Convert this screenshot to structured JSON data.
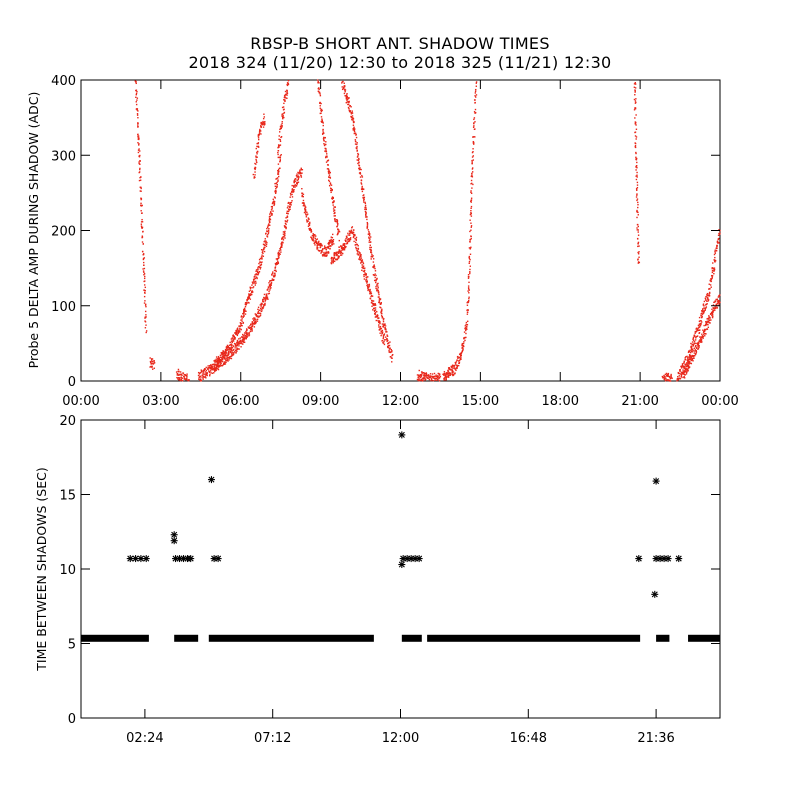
{
  "title_line1": "RBSP-B SHORT ANT. SHADOW TIMES",
  "title_line2": "2018 324 (11/20) 12:30 to 2018 325 (11/21) 12:30",
  "colors": {
    "top_points": "#e8271a",
    "bottom_points": "#000000",
    "axes": "#000000"
  },
  "chart_data": [
    {
      "type": "scatter",
      "ylabel": "Probe 5 DELTA AMP DURING SHADOW (ADC)",
      "xlabel": "",
      "x_unit": "hours",
      "xlim": [
        0,
        24
      ],
      "ylim": [
        0,
        400
      ],
      "xtick_labels": [
        "00:00",
        "03:00",
        "06:00",
        "09:00",
        "12:00",
        "15:00",
        "18:00",
        "21:00",
        "00:00"
      ],
      "xtick_values": [
        0,
        3,
        6,
        9,
        12,
        15,
        18,
        21,
        24
      ],
      "ytick_labels": [
        "0",
        "100",
        "200",
        "300",
        "400"
      ],
      "ytick_values": [
        0,
        100,
        200,
        300,
        400
      ],
      "point_color": "#e8271a",
      "segments": [
        {
          "x": [
            2.05,
            2.15,
            2.25,
            2.35,
            2.45
          ],
          "y": [
            400,
            330,
            250,
            160,
            65
          ]
        },
        {
          "x": [
            2.6,
            2.75
          ],
          "y": [
            24,
            22
          ]
        },
        {
          "x": [
            3.6,
            3.75,
            3.9,
            4.05
          ],
          "y": [
            10,
            6,
            3,
            2
          ]
        },
        {
          "x": [
            4.4,
            5.0,
            5.6,
            6.2,
            6.6,
            7.0,
            7.3,
            7.6,
            7.8,
            8.0,
            8.3
          ],
          "y": [
            5,
            18,
            35,
            60,
            85,
            115,
            150,
            190,
            230,
            260,
            280
          ]
        },
        {
          "x": [
            5.0,
            5.6,
            6.0,
            6.3,
            6.6,
            6.9,
            7.2,
            7.5
          ],
          "y": [
            20,
            45,
            75,
            110,
            140,
            180,
            230,
            300
          ]
        },
        {
          "x": [
            6.5,
            6.7,
            6.9
          ],
          "y": [
            270,
            330,
            350
          ]
        },
        {
          "x": [
            7.4,
            7.6,
            7.8
          ],
          "y": [
            300,
            360,
            400
          ]
        },
        {
          "x": [
            8.3,
            8.6,
            8.9,
            9.2,
            9.5
          ],
          "y": [
            250,
            200,
            180,
            170,
            190
          ]
        },
        {
          "x": [
            8.9,
            9.1,
            9.3,
            9.5,
            9.7
          ],
          "y": [
            400,
            330,
            280,
            230,
            190
          ]
        },
        {
          "x": [
            9.8,
            10.2,
            10.6,
            11.0,
            11.4,
            11.7
          ],
          "y": [
            400,
            350,
            250,
            150,
            70,
            30
          ]
        },
        {
          "x": [
            9.4,
            9.8,
            10.2,
            10.6,
            11.0,
            11.4
          ],
          "y": [
            160,
            175,
            200,
            150,
            100,
            50
          ]
        },
        {
          "x": [
            12.65,
            12.9,
            13.2,
            13.5
          ],
          "y": [
            8,
            4,
            3,
            3
          ]
        },
        {
          "x": [
            13.6,
            14.0,
            14.3,
            14.5,
            14.6,
            14.7,
            14.85
          ],
          "y": [
            5,
            15,
            35,
            80,
            160,
            280,
            400
          ]
        },
        {
          "x": [
            20.8,
            20.88,
            20.95
          ],
          "y": [
            400,
            250,
            150
          ]
        },
        {
          "x": [
            21.85,
            22.0,
            22.2
          ],
          "y": [
            4,
            3,
            3
          ]
        },
        {
          "x": [
            22.4,
            22.8,
            23.2,
            23.6,
            24.0
          ],
          "y": [
            2,
            30,
            70,
            120,
            200
          ]
        },
        {
          "x": [
            22.6,
            23.0,
            23.4,
            23.8,
            24.0
          ],
          "y": [
            5,
            35,
            65,
            100,
            110
          ]
        }
      ]
    },
    {
      "type": "scatter",
      "ylabel": "TIME BETWEEN SHADOWS (SEC)",
      "xlabel": "",
      "x_unit": "hours",
      "xlim": [
        -1.5,
        22.5
      ],
      "ylim": [
        0,
        20
      ],
      "xtick_labels": [
        "02:24",
        "07:12",
        "12:00",
        "16:48",
        "21:36"
      ],
      "xtick_values": [
        0.9,
        5.7,
        10.5,
        15.3,
        20.1
      ],
      "ytick_labels": [
        "0",
        "5",
        "10",
        "15",
        "20"
      ],
      "ytick_values": [
        0,
        5,
        10,
        15,
        20
      ],
      "marker": "asterisk",
      "point_color": "#000000",
      "baseline": {
        "y": 5.35,
        "x_ranges": [
          [
            -1.5,
            1.05
          ],
          [
            2.0,
            2.9
          ],
          [
            3.3,
            9.5
          ],
          [
            10.55,
            11.3
          ],
          [
            11.5,
            19.5
          ],
          [
            20.1,
            20.6
          ],
          [
            21.3,
            22.5
          ]
        ]
      },
      "points": [
        {
          "x": 0.35,
          "y": 10.7
        },
        {
          "x": 0.55,
          "y": 10.7
        },
        {
          "x": 0.75,
          "y": 10.7
        },
        {
          "x": 0.95,
          "y": 10.7
        },
        {
          "x": 2.0,
          "y": 12.3
        },
        {
          "x": 2.0,
          "y": 11.9
        },
        {
          "x": 2.05,
          "y": 10.7
        },
        {
          "x": 2.2,
          "y": 10.7
        },
        {
          "x": 2.35,
          "y": 10.7
        },
        {
          "x": 2.5,
          "y": 10.7
        },
        {
          "x": 2.62,
          "y": 10.7
        },
        {
          "x": 3.4,
          "y": 16.0
        },
        {
          "x": 3.5,
          "y": 10.7
        },
        {
          "x": 3.65,
          "y": 10.7
        },
        {
          "x": 10.55,
          "y": 19.0
        },
        {
          "x": 10.55,
          "y": 10.3
        },
        {
          "x": 10.6,
          "y": 10.7
        },
        {
          "x": 10.75,
          "y": 10.7
        },
        {
          "x": 10.9,
          "y": 10.7
        },
        {
          "x": 11.05,
          "y": 10.7
        },
        {
          "x": 11.2,
          "y": 10.7
        },
        {
          "x": 19.45,
          "y": 10.7
        },
        {
          "x": 20.1,
          "y": 15.9
        },
        {
          "x": 20.05,
          "y": 8.3
        },
        {
          "x": 20.1,
          "y": 10.7
        },
        {
          "x": 20.25,
          "y": 10.7
        },
        {
          "x": 20.4,
          "y": 10.7
        },
        {
          "x": 20.55,
          "y": 10.7
        },
        {
          "x": 20.95,
          "y": 10.7
        }
      ]
    }
  ]
}
